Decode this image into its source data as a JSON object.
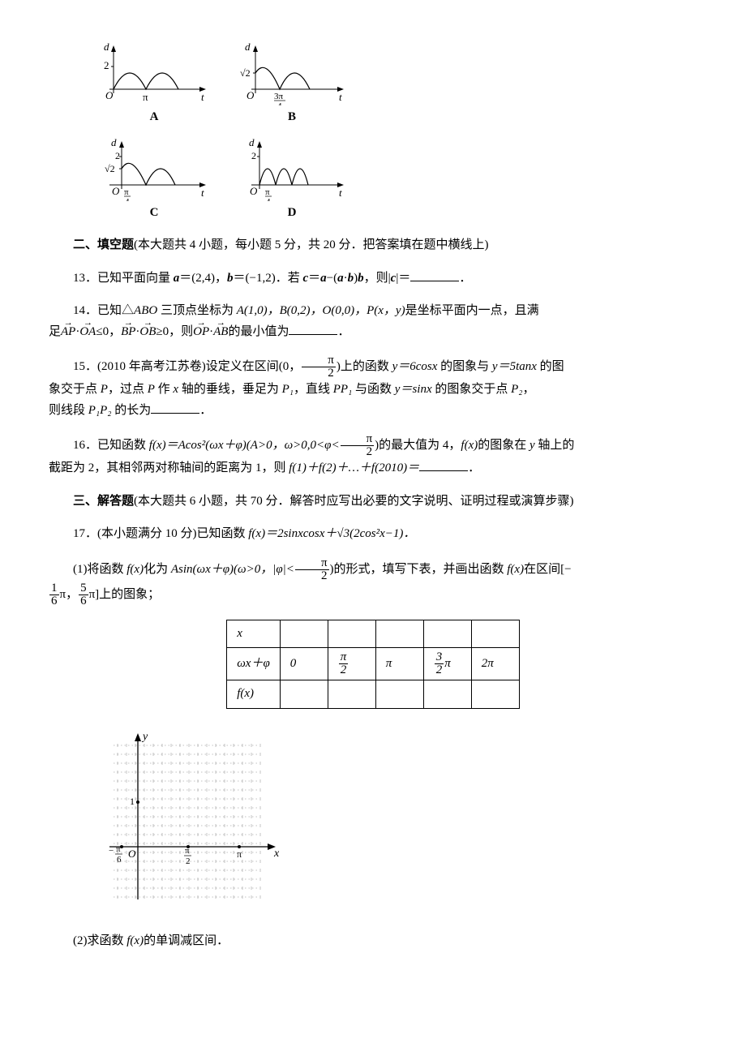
{
  "graphs": {
    "A": {
      "label": "A",
      "y_axis": "d",
      "x_axis": "t",
      "ytick": "2",
      "xtick": "π",
      "ytick_frac": null,
      "xtick_frac": null,
      "type": "double-arch-full"
    },
    "B": {
      "label": "B",
      "y_axis": "d",
      "x_axis": "t",
      "ytick": null,
      "xtick": null,
      "ytick_frac": {
        "num": "√2",
        "den": ""
      },
      "xtick_frac": {
        "num": "3π",
        "den": "4"
      },
      "ytick_plain": "√2",
      "type": "double-arch-shift"
    },
    "C": {
      "label": "C",
      "y_axis": "d",
      "x_axis": "t",
      "ytick": "2",
      "ytick2": "√2",
      "xtick": null,
      "xtick_frac": {
        "num": "π",
        "den": "4"
      },
      "type": "arch-from-mid"
    },
    "D": {
      "label": "D",
      "y_axis": "d",
      "x_axis": "t",
      "ytick": "2",
      "xtick": null,
      "xtick_frac": {
        "num": "π",
        "den": "4"
      },
      "type": "triple-narrow"
    }
  },
  "section2": {
    "heading": "二、填空题",
    "desc": "(本大题共 4 小题，每小题 5 分，共 20 分．把答案填在题中横线上)"
  },
  "q13": {
    "num": "13．",
    "text_a": "已知平面向量 ",
    "a_lbl": "a",
    "a_val": "＝(2,4)，",
    "b_lbl": "b",
    "b_val": "＝(−1,2)．若 ",
    "c_lbl": "c",
    "c_eq": "＝",
    "a2": "a",
    "minus": "−(",
    "a3": "a",
    "dot": "·",
    "b2": "b",
    "paren": ")",
    "b3": "b",
    "tail": "，则|",
    "c2": "c",
    "tail2": "|＝"
  },
  "q14": {
    "num": "14．",
    "line1_a": "已知△",
    "tri": "ABO",
    "line1_b": " 三顶点坐标为 ",
    "pts": "A(1,0)，B(0,2)，O(0,0)，P(x，y)",
    "line1_c": "是坐标平面内一点，且满",
    "line2_a": "足",
    "ap": "AP",
    "dot1": "·",
    "oa": "OA",
    "le": "≤0，",
    "bp": "BP",
    "dot2": "·",
    "ob": "OB",
    "ge": "≥0，则",
    "op": "OP",
    "dot3": "·",
    "ab": "AB",
    "tail": "的最小值为"
  },
  "q15": {
    "num": "15．",
    "src": "(2010 年高考江苏卷)",
    "t1": "设定义在区间(0，",
    "frac": {
      "num": "π",
      "den": "2"
    },
    "t2": ")上的函数 ",
    "f1": "y＝6cosx",
    "t3": " 的图象与 ",
    "f2": "y＝5tanx",
    "t4": " 的图",
    "l2a": "象交于点 ",
    "p": "P",
    "l2b": "，过点 ",
    "p2": "P",
    "l2c": " 作 ",
    "x": "x",
    "l2d": " 轴的垂线，垂足为 ",
    "p1": "P₁",
    "l2e": "，直线 ",
    "pp": "PP₁",
    "l2f": " 与函数 ",
    "f3": "y＝sinx",
    "l2g": " 的图象交于点 ",
    "p22": "P₂",
    "l2h": "，",
    "l3a": "则线段 ",
    "seg": "P₁P₂",
    "l3b": " 的长为"
  },
  "q16": {
    "num": "16．",
    "t1": "已知函数 ",
    "fx": "f(x)＝Acos²(ωx＋φ)(A>0，ω>0,0<φ<",
    "frac": {
      "num": "π",
      "den": "2"
    },
    "t2": ")的最大值为 4，",
    "fx2": "f(x)",
    "t3": "的图象在 ",
    "y": "y",
    "t4": " 轴上的",
    "l2a": "截距为 2，其相邻两对称轴间的距离为 1，则 ",
    "sum": "f(1)＋f(2)＋…＋f(2010)＝"
  },
  "section3": {
    "heading": "三、解答题",
    "desc": "(本大题共 6 小题，共 70 分．解答时应写出必要的文字说明、证明过程或演算步骤)"
  },
  "q17": {
    "num": "17．",
    "head": "(本小题满分 10 分)已知函数 ",
    "fx": "f(x)＝2sinxcosx＋√3(2cos²x−1)．",
    "p1a": "(1)将函数 ",
    "fxl": "f(x)",
    "p1b": "化为 ",
    "form": "Asin(ωx＋φ)(ω>0，|φ|<",
    "frac": {
      "num": "π",
      "den": "2"
    },
    "p1c": ")的形式，填写下表，并画出函数 ",
    "fxl2": "f(x)",
    "p1d": "在区间[−",
    "f_a": {
      "num": "1",
      "den": "6"
    },
    "pi1": "π，",
    "f_b": {
      "num": "5",
      "den": "6"
    },
    "pi2": "π]上的图象；",
    "table": {
      "r1": "x",
      "r2": "ωx＋φ",
      "cells": [
        "0",
        "",
        "π",
        "",
        "2π"
      ],
      "frac1": {
        "num": "π",
        "den": "2"
      },
      "frac2": {
        "num": "3",
        "den": "2"
      },
      "pi_suffix": "π",
      "r3": "f(x)"
    },
    "grid": {
      "y_label": "y",
      "x_label": "x",
      "o_label": "O",
      "y_tick": "1",
      "x_neg_num": "π",
      "x_neg_den": "6",
      "x_mid_num": "π",
      "x_mid_den": "2",
      "x_right": "π"
    },
    "p2": "(2)求函数 ",
    "fxl3": "f(x)",
    "p2b": "的单调减区间．"
  },
  "colors": {
    "axis": "#000",
    "curve": "#000",
    "grid": "#888"
  }
}
